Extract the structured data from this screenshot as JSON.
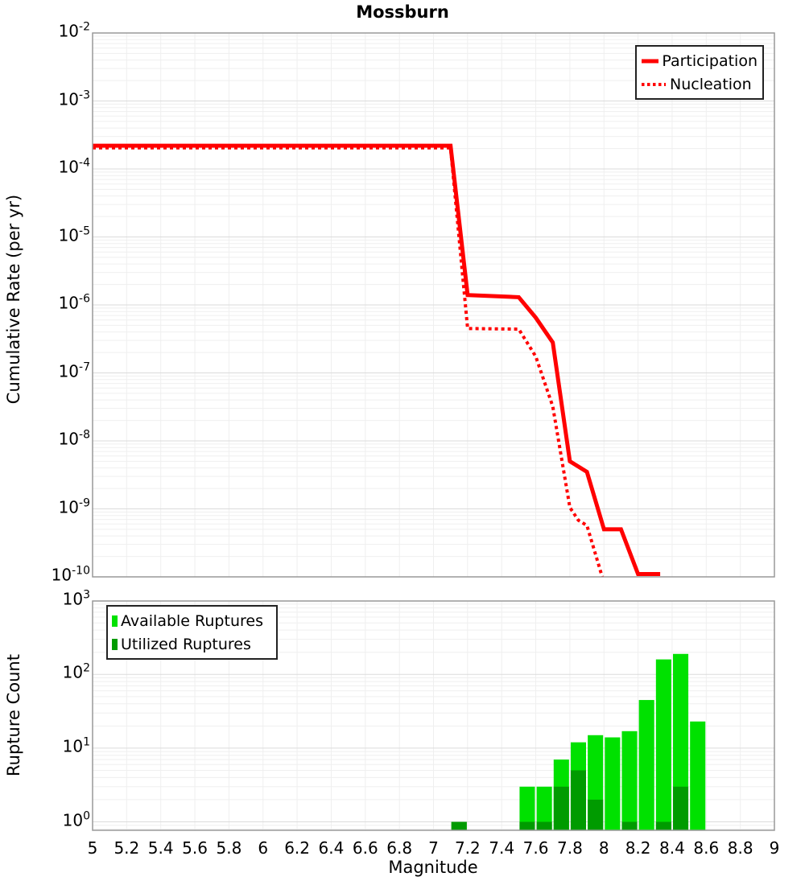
{
  "title": "Mossburn",
  "colors": {
    "line_red": "#FF0000",
    "available_green": "#00E100",
    "utilized_green": "#009B00",
    "grid_minor": "#EFEFEF",
    "grid_major": "#DBDBDB",
    "panel_border": "#999999",
    "legend_border": "#222222"
  },
  "chart_data": [
    {
      "type": "line",
      "title": "Mossburn",
      "ylabel": "Cumulative Rate (per yr)",
      "xlabel": "",
      "x_range": [
        5,
        9
      ],
      "y_range": [
        1e-10,
        0.01
      ],
      "y_scale": "log",
      "grid": true,
      "y_tick_exponents": [
        -2,
        -3,
        -4,
        -5,
        -6,
        -7,
        -8,
        -9,
        -10
      ],
      "x_tick_labels": [
        "5",
        "5.2",
        "5.4",
        "5.6",
        "5.8",
        "6",
        "6.2",
        "6.4",
        "6.6",
        "6.8",
        "7",
        "7.2",
        "7.4",
        "7.6",
        "7.8",
        "8",
        "8.2",
        "8.4",
        "8.6",
        "8.8",
        "9"
      ],
      "x_ticks_visible": false,
      "legend_position": "top-right",
      "series": [
        {
          "name": "Participation",
          "style": "solid",
          "points": [
            [
              5.0,
              0.00022
            ],
            [
              7.1,
              0.00022
            ],
            [
              7.2,
              1.4e-06
            ],
            [
              7.5,
              1.3e-06
            ],
            [
              7.6,
              6.5e-07
            ],
            [
              7.7,
              2.8e-07
            ],
            [
              7.8,
              5e-09
            ],
            [
              7.9,
              3.5e-09
            ],
            [
              8.0,
              5e-10
            ],
            [
              8.1,
              5e-10
            ],
            [
              8.2,
              1.1e-10
            ],
            [
              8.33,
              1.1e-10
            ]
          ]
        },
        {
          "name": "Nucleation",
          "style": "dotted",
          "points": [
            [
              5.0,
              0.000205
            ],
            [
              7.1,
              0.000205
            ],
            [
              7.2,
              4.5e-07
            ],
            [
              7.5,
              4.4e-07
            ],
            [
              7.6,
              1.75e-07
            ],
            [
              7.7,
              3.2e-08
            ],
            [
              7.8,
              1.05e-09
            ],
            [
              7.85,
              6.8e-10
            ],
            [
              7.9,
              5.7e-10
            ],
            [
              7.99,
              1e-10
            ]
          ]
        }
      ]
    },
    {
      "type": "bar",
      "title": "",
      "ylabel": "Rupture Count",
      "xlabel": "Magnitude",
      "x_range": [
        5,
        9
      ],
      "y_range": [
        1,
        1000
      ],
      "y_scale": "log",
      "grid": true,
      "y_tick_exponents": [
        3,
        2,
        1,
        0
      ],
      "x_tick_labels": [
        "5",
        "5.2",
        "5.4",
        "5.6",
        "5.8",
        "6",
        "6.2",
        "6.4",
        "6.6",
        "6.8",
        "7",
        "7.2",
        "7.4",
        "7.6",
        "7.8",
        "8",
        "8.2",
        "8.4",
        "8.6",
        "8.8",
        "9"
      ],
      "legend_position": "top-left",
      "bin_width": 0.1,
      "categories": [
        7.15,
        7.55,
        7.65,
        7.75,
        7.85,
        7.95,
        8.05,
        8.15,
        8.25,
        8.35,
        8.45,
        8.55
      ],
      "series": [
        {
          "name": "Available Ruptures",
          "values": [
            1,
            3,
            3,
            7,
            12,
            15,
            14,
            17,
            45,
            160,
            190,
            23
          ]
        },
        {
          "name": "Utilized Ruptures",
          "values": [
            1,
            1,
            1,
            3,
            5,
            2,
            0,
            1,
            0,
            1,
            3,
            0
          ]
        }
      ]
    }
  ]
}
